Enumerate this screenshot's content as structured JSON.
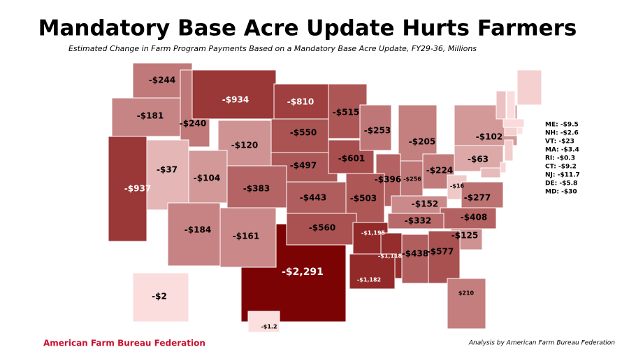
{
  "title": "Mandatory Base Acre Update Hurts Farmers",
  "subtitle": "Estimated Change in Farm Program Payments Based on a Mandatory Base Acre Update, FY29-36, Millions",
  "map": {
    "regions": [
      {
        "value": -244,
        "label": "-$244"
      },
      {
        "value": -181,
        "label": "-$181"
      },
      {
        "value": -240,
        "label": "-$240"
      },
      {
        "value": -934,
        "label": "-$934"
      },
      {
        "value": -120,
        "label": "-$120"
      },
      {
        "value": -810,
        "label": "-$810"
      },
      {
        "value": -550,
        "label": "-$550"
      },
      {
        "value": -497,
        "label": "-$497"
      },
      {
        "value": -515,
        "label": "-$515"
      },
      {
        "value": -601,
        "label": "-$601"
      },
      {
        "value": -253,
        "label": "-$253"
      },
      {
        "value": -205,
        "label": "-$205"
      },
      {
        "value": -396,
        "label": "-$396"
      },
      {
        "value": -256,
        "label": "-$256"
      },
      {
        "value": -224,
        "label": "-$224"
      },
      {
        "value": -63,
        "label": "-$63"
      },
      {
        "value": -102,
        "label": "-$102"
      },
      {
        "value": -937,
        "label": "-$937"
      },
      {
        "value": -37,
        "label": "-$37"
      },
      {
        "value": -104,
        "label": "-$104"
      },
      {
        "value": -383,
        "label": "-$383"
      },
      {
        "value": -443,
        "label": "-$443"
      },
      {
        "value": -503,
        "label": "-$503"
      },
      {
        "value": -152,
        "label": "-$152"
      },
      {
        "value": -16,
        "label": "-$16"
      },
      {
        "value": -277,
        "label": "-$277"
      },
      {
        "value": -408,
        "label": "-$408"
      },
      {
        "value": -332,
        "label": "-$332"
      },
      {
        "value": -125,
        "label": "-$125"
      },
      {
        "value": -184,
        "label": "-$184"
      },
      {
        "value": -161,
        "label": "-$161"
      },
      {
        "value": -560,
        "label": "-$560"
      },
      {
        "value": -1195,
        "label": "-$1,195"
      },
      {
        "value": -1118,
        "label": "-$1,118"
      },
      {
        "value": -438,
        "label": "-$438"
      },
      {
        "value": -577,
        "label": "-$577"
      },
      {
        "value": -2291,
        "label": "-$2,291"
      },
      {
        "value": -1182,
        "label": "-$1,182"
      },
      {
        "value": 210,
        "label": "$210"
      },
      {
        "value": -2,
        "label": "-$2"
      },
      {
        "value": -1.2,
        "label": "-$1.2"
      }
    ],
    "sidebar": [
      {
        "value": -9.5,
        "label": "ME: -$9.5"
      },
      {
        "value": -2.6,
        "label": "NH: -$2.6"
      },
      {
        "value": -23,
        "label": "VT: -$23"
      },
      {
        "value": -3.4,
        "label": "MA: -$3.4"
      },
      {
        "value": -0.3,
        "label": "RI: -$0.3"
      },
      {
        "value": -9.2,
        "label": "CT: -$9.2"
      },
      {
        "value": -11.7,
        "label": "NJ: -$11.7"
      },
      {
        "value": -5.8,
        "label": "DE: -$5.8"
      },
      {
        "value": -30,
        "label": "MD: -$30"
      }
    ]
  },
  "footer": {
    "organization": "American Farm Bureau Federation",
    "credit": "Analysis by American Farm Bureau Federation"
  }
}
